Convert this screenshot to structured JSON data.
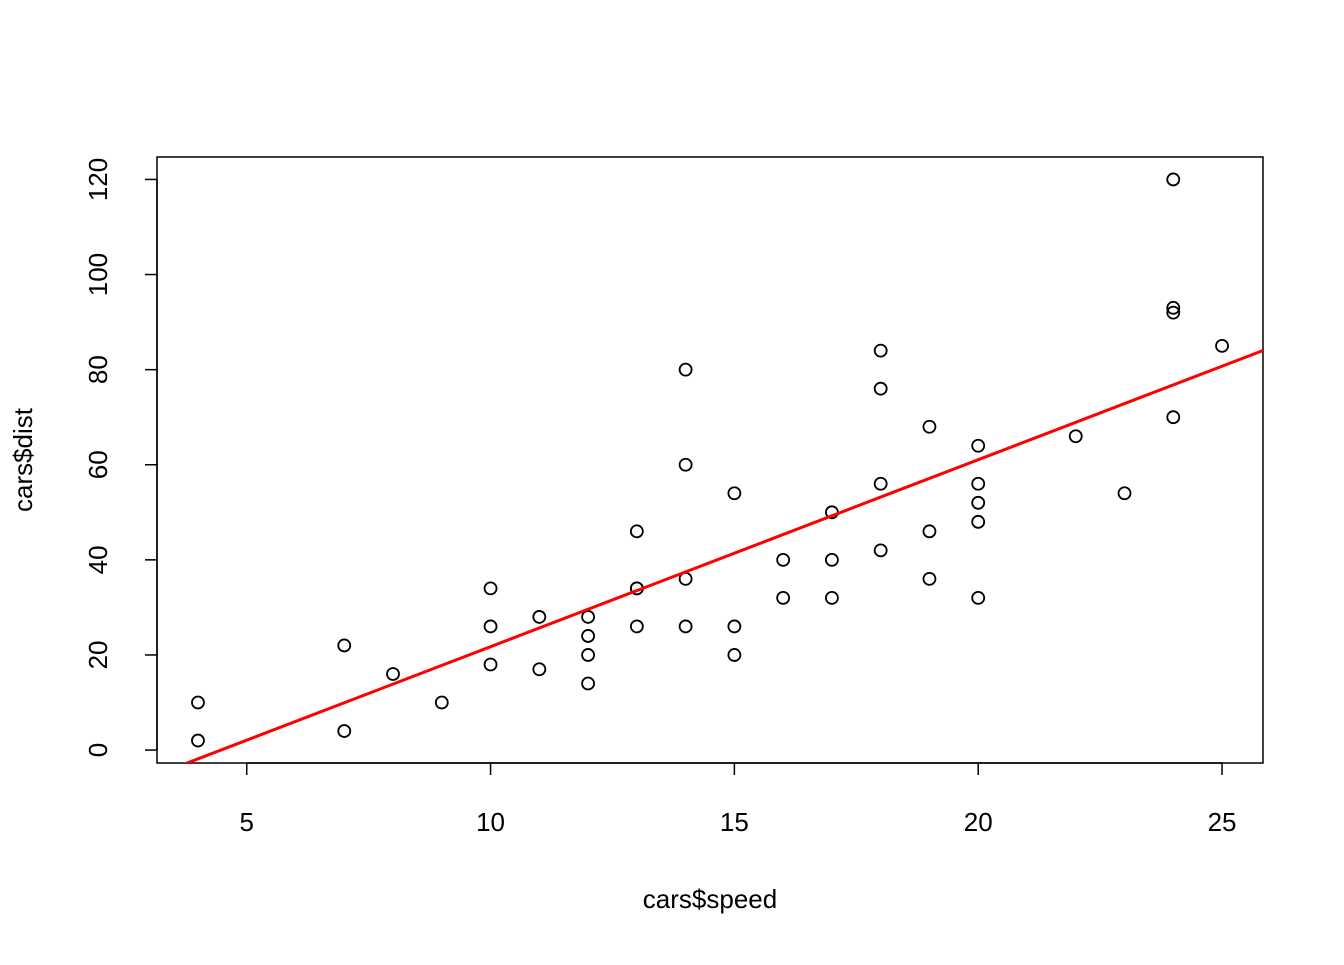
{
  "chart_data": {
    "type": "scatter",
    "x_label": "cars$speed",
    "y_label": "cars$dist",
    "x": [
      4,
      4,
      7,
      7,
      8,
      9,
      10,
      10,
      10,
      11,
      11,
      12,
      12,
      12,
      12,
      13,
      13,
      13,
      13,
      14,
      14,
      14,
      14,
      15,
      15,
      15,
      16,
      16,
      17,
      17,
      17,
      18,
      18,
      18,
      18,
      19,
      19,
      19,
      20,
      20,
      20,
      20,
      20,
      22,
      23,
      24,
      24,
      24,
      24,
      25
    ],
    "values": [
      2,
      10,
      4,
      22,
      16,
      10,
      18,
      26,
      34,
      17,
      28,
      14,
      20,
      24,
      28,
      26,
      34,
      34,
      46,
      26,
      36,
      60,
      80,
      20,
      26,
      54,
      32,
      40,
      32,
      40,
      50,
      42,
      56,
      76,
      84,
      36,
      46,
      68,
      32,
      48,
      52,
      56,
      64,
      66,
      54,
      70,
      92,
      93,
      120,
      85
    ],
    "color": "#000000",
    "fit": {
      "intercept": -17.579,
      "slope": 3.932,
      "color": "#ff0000"
    },
    "xlim": [
      3.16,
      25.84
    ],
    "ylim": [
      -2.72,
      124.72
    ],
    "xticks": [
      5,
      10,
      15,
      20,
      25
    ],
    "yticks": [
      0,
      20,
      40,
      60,
      80,
      100,
      120
    ]
  }
}
